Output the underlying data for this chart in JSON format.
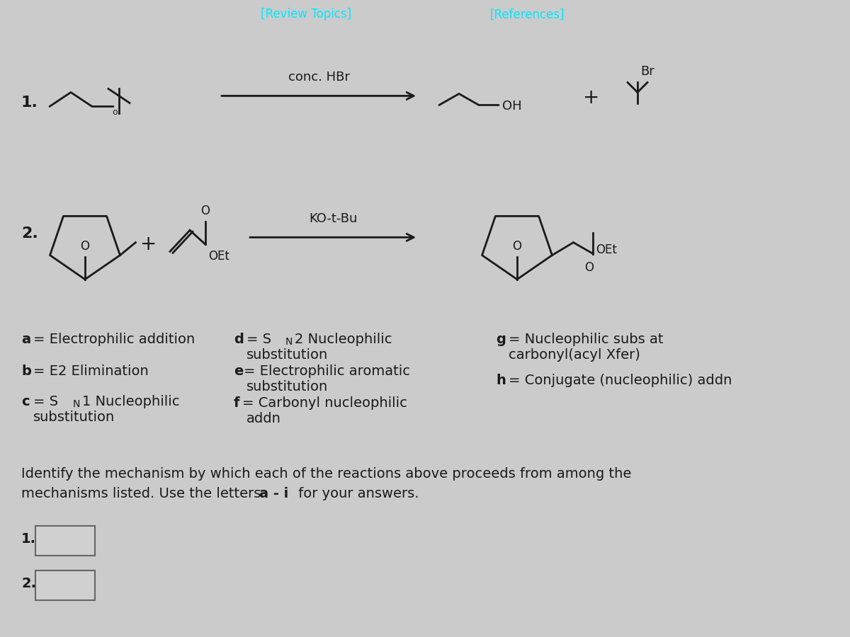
{
  "background_color": "#cbcbcb",
  "header_bg": "#1c1c1c",
  "header_text_color": "#00e8ff",
  "header_review": "[Review Topics]",
  "header_references": "[References]",
  "body_bg": "#d6d6d6",
  "text_color": "#1a1a1a",
  "reagent1": "conc. HBr",
  "reagent2": "KO-t-Bu"
}
